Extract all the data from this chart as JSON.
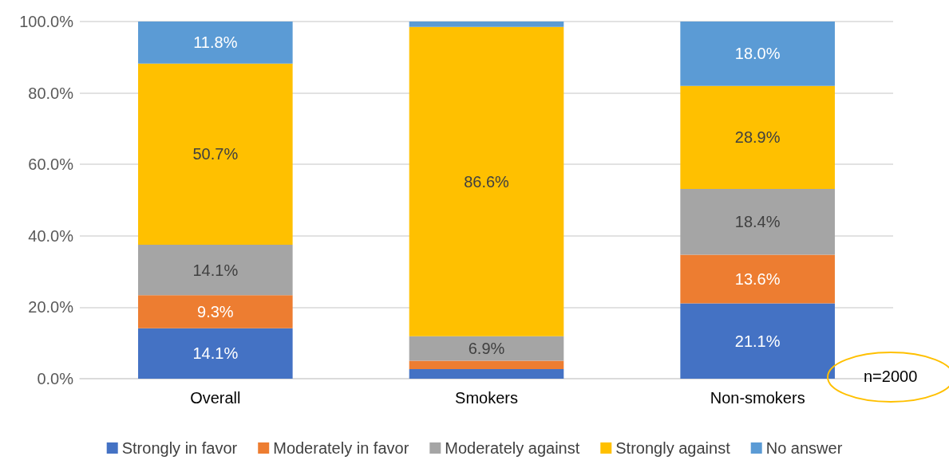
{
  "chart_data": {
    "type": "bar",
    "stacked": true,
    "categories": [
      "Overall",
      "Smokers",
      "Non-smokers"
    ],
    "series": [
      {
        "name": "Strongly in favor",
        "color": "#4472c4",
        "values": [
          14.1,
          2.7,
          21.1
        ],
        "value_labels": [
          "14.1%",
          null,
          "21.1%"
        ]
      },
      {
        "name": "Moderately in favor",
        "color": "#ed7d31",
        "values": [
          9.3,
          2.3,
          13.6
        ],
        "value_labels": [
          "9.3%",
          null,
          "13.6%"
        ]
      },
      {
        "name": "Moderately against",
        "color": "#a5a5a5",
        "values": [
          14.1,
          6.9,
          18.4
        ],
        "value_labels": [
          "14.1%",
          "6.9%",
          "18.4%"
        ]
      },
      {
        "name": "Strongly against",
        "color": "#ffc000",
        "values": [
          50.7,
          86.6,
          28.9
        ],
        "value_labels": [
          "50.7%",
          "86.6%",
          "28.9%"
        ]
      },
      {
        "name": "No answer",
        "color": "#5b9bd5",
        "values": [
          11.8,
          1.5,
          18.0
        ],
        "value_labels": [
          "11.8%",
          null,
          "18.0%"
        ]
      }
    ],
    "ylim": [
      0,
      100
    ],
    "yticks": [
      {
        "value": 0,
        "label": "0.0%"
      },
      {
        "value": 20,
        "label": "20.0%"
      },
      {
        "value": 40,
        "label": "40.0%"
      },
      {
        "value": 60,
        "label": "60.0%"
      },
      {
        "value": 80,
        "label": "80.0%"
      },
      {
        "value": 100,
        "label": "100.0%"
      }
    ],
    "grid": "y",
    "legend": "bottom",
    "annotations": [
      "n=2000"
    ]
  }
}
